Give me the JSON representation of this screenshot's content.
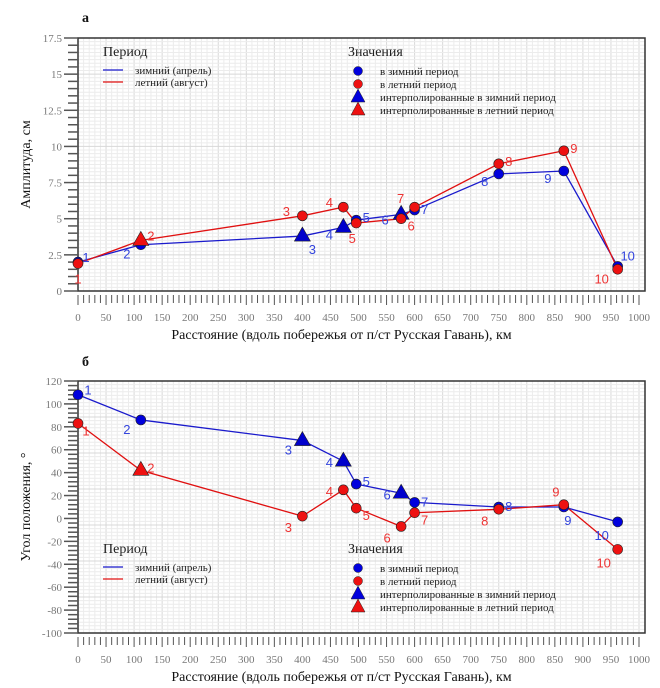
{
  "chart_data": [
    {
      "type": "line",
      "panel": "а",
      "title": "",
      "xlabel": "Расстояние (вдоль побережья от п/ст Русская Гавань), км",
      "ylabel": "Амплитуда, см",
      "xlim": [
        0,
        1000
      ],
      "ylim": [
        0,
        17.5
      ],
      "xticks": [
        0,
        50,
        100,
        150,
        200,
        250,
        300,
        350,
        400,
        450,
        500,
        550,
        600,
        650,
        700,
        750,
        800,
        850,
        900,
        950,
        1000
      ],
      "yticks": [
        0,
        2.5,
        5,
        7.5,
        10,
        12.5,
        15,
        17.5
      ],
      "ytick_labels": [
        "0",
        "2.5",
        "5",
        "7.5",
        "10",
        "12.5",
        "15",
        "17.5"
      ],
      "grid": true,
      "series": [
        {
          "name": "зимний (апрель)",
          "color": "#1a1acc",
          "x": [
            0,
            112,
            400,
            473,
            496,
            576,
            600,
            750,
            866,
            962
          ],
          "y": [
            2.0,
            3.2,
            3.8,
            4.4,
            4.9,
            5.3,
            5.6,
            8.1,
            8.3,
            1.7
          ],
          "labels": [
            "1",
            "2",
            "3",
            "4",
            "5",
            "6",
            "7",
            "8",
            "9",
            "10"
          ],
          "interpolated": [
            false,
            false,
            true,
            true,
            false,
            true,
            false,
            false,
            false,
            false
          ]
        },
        {
          "name": "летний (август)",
          "color": "#e01010",
          "x": [
            0,
            112,
            400,
            473,
            496,
            576,
            600,
            750,
            866,
            962
          ],
          "y": [
            1.9,
            3.5,
            5.2,
            5.8,
            4.7,
            5.0,
            5.8,
            8.8,
            9.7,
            1.5
          ],
          "labels": [
            "1",
            "2",
            "3",
            "4",
            "5",
            "6",
            "7",
            "8",
            "9",
            "10"
          ],
          "interpolated": [
            false,
            true,
            false,
            false,
            false,
            false,
            false,
            false,
            false,
            false
          ]
        }
      ],
      "legend_period": {
        "title": "Период",
        "items": [
          "зимний (апрель)",
          "летний (август)"
        ],
        "placement": "top-left"
      },
      "legend_values": {
        "title": "Значения",
        "items": [
          "в зимний период",
          "в летний период",
          "интерполированные в зимний период",
          "интерполированные в летний период"
        ],
        "placement": "top-center"
      }
    },
    {
      "type": "line",
      "panel": "б",
      "title": "",
      "xlabel": "Расстояние (вдоль побережья от п/ст Русская Гавань), км",
      "ylabel": "Угол положения, °",
      "xlim": [
        0,
        1000
      ],
      "ylim": [
        -100,
        120
      ],
      "xticks": [
        0,
        50,
        100,
        150,
        200,
        250,
        300,
        350,
        400,
        450,
        500,
        550,
        600,
        650,
        700,
        750,
        800,
        850,
        900,
        950,
        1000
      ],
      "yticks": [
        -100,
        -80,
        -60,
        -40,
        -20,
        0,
        20,
        40,
        60,
        80,
        100,
        120
      ],
      "ytick_labels": [
        "-100",
        "-80",
        "-60",
        "-40",
        "-20",
        "0",
        "20",
        "40",
        "60",
        "80",
        "100",
        "120"
      ],
      "grid": true,
      "series": [
        {
          "name": "зимний (апрель)",
          "color": "#1a1acc",
          "x": [
            0,
            112,
            400,
            473,
            496,
            576,
            600,
            750,
            866,
            962
          ],
          "y": [
            108,
            86,
            68,
            50,
            30,
            22,
            14,
            10,
            10,
            -3
          ],
          "labels": [
            "1",
            "2",
            "3",
            "4",
            "5",
            "6",
            "7",
            "8",
            "9",
            "10"
          ],
          "interpolated": [
            false,
            false,
            true,
            true,
            false,
            true,
            false,
            false,
            false,
            false
          ]
        },
        {
          "name": "летний (август)",
          "color": "#e01010",
          "x": [
            0,
            112,
            400,
            473,
            496,
            576,
            600,
            750,
            866,
            962
          ],
          "y": [
            83,
            42,
            2,
            25,
            9,
            -7,
            5,
            8,
            12,
            -27
          ],
          "labels": [
            "1",
            "2",
            "3",
            "4",
            "5",
            "6",
            "7",
            "8",
            "9",
            "10"
          ],
          "interpolated": [
            false,
            true,
            false,
            false,
            false,
            false,
            false,
            false,
            false,
            false
          ]
        }
      ],
      "legend_period": {
        "title": "Период",
        "items": [
          "зимний (апрель)",
          "летний (август)"
        ],
        "placement": "bottom-left"
      },
      "legend_values": {
        "title": "Значения",
        "items": [
          "в зимний период",
          "в летний период",
          "интерполированные в зимний период",
          "интерполированные в летний период"
        ],
        "placement": "bottom-center"
      }
    }
  ]
}
